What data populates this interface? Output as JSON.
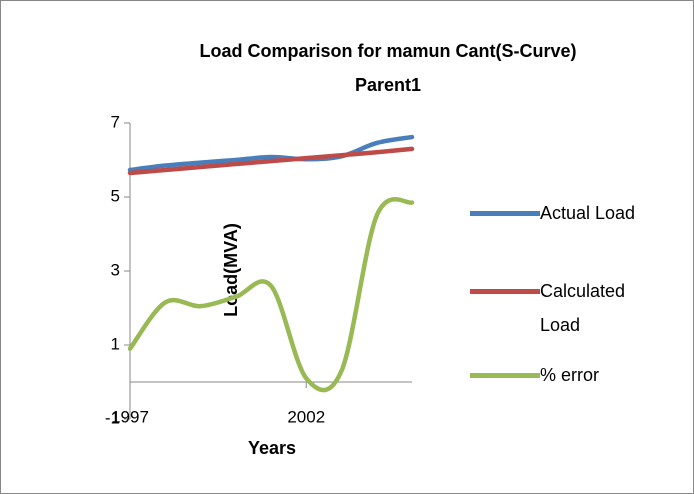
{
  "chart_data": {
    "type": "line",
    "title": [
      "Load Comparison for mamun Cant(S-Curve)",
      "Parent1"
    ],
    "x_label": "Years",
    "y_label": "Load(MVA)",
    "x": [
      1997,
      1998,
      1999,
      2000,
      2001,
      2002,
      2003,
      2004,
      2005
    ],
    "xlim": [
      1997,
      2005
    ],
    "xticks": [
      1997,
      2002
    ],
    "ylim": [
      -1,
      7
    ],
    "yticks": [
      -1,
      1,
      3,
      5,
      7
    ],
    "series": [
      {
        "name": "Actual Load",
        "color": "#4a7ebb",
        "values": [
          5.73,
          5.85,
          5.93,
          6.0,
          6.08,
          6.02,
          6.1,
          6.46,
          6.62
        ]
      },
      {
        "name": "Calculated Load",
        "color": "#be4b48",
        "values": [
          5.65,
          5.73,
          5.81,
          5.89,
          5.97,
          6.05,
          6.13,
          6.21,
          6.3
        ]
      },
      {
        "name": "% error",
        "color": "#98b954",
        "values": [
          0.9,
          2.15,
          2.05,
          2.3,
          2.6,
          0.1,
          0.3,
          4.5,
          4.85
        ]
      }
    ],
    "legend": "right",
    "grid": false
  }
}
